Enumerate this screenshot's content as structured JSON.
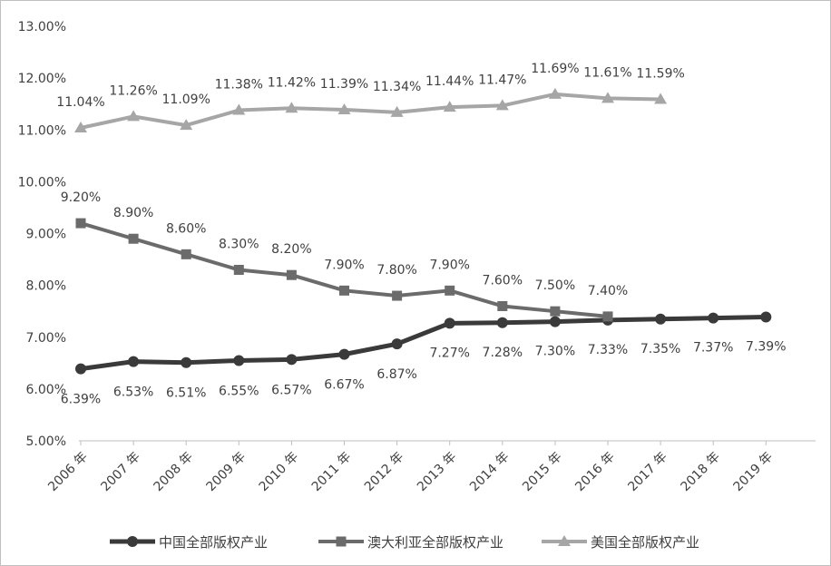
{
  "chart_data": {
    "type": "line",
    "title": "",
    "xlabel": "",
    "ylabel": "",
    "categories": [
      "2006 年",
      "2007 年",
      "2008 年",
      "2009 年",
      "2010 年",
      "2011 年",
      "2012 年",
      "2013 年",
      "2014 年",
      "2015 年",
      "2016 年",
      "2017 年",
      "2018 年",
      "2019 年"
    ],
    "ylim": [
      5.0,
      13.0
    ],
    "yticks": [
      "5.00%",
      "6.00%",
      "7.00%",
      "8.00%",
      "9.00%",
      "10.00%",
      "11.00%",
      "12.00%",
      "13.00%"
    ],
    "grid": false,
    "legend_position": "bottom",
    "series": [
      {
        "name": "中国全部版权产业",
        "marker": "circle",
        "color": "#3a3a3a",
        "values": [
          6.39,
          6.53,
          6.51,
          6.55,
          6.57,
          6.67,
          6.87,
          7.27,
          7.28,
          7.3,
          7.33,
          7.35,
          7.37,
          7.39
        ],
        "labels": [
          "6.39%",
          "6.53%",
          "6.51%",
          "6.55%",
          "6.57%",
          "6.67%",
          "6.87%",
          "7.27%",
          "7.28%",
          "7.30%",
          "7.33%",
          "7.35%",
          "7.37%",
          "7.39%"
        ]
      },
      {
        "name": "澳大利亚全部版权产业",
        "marker": "square",
        "color": "#6b6b6b",
        "values": [
          9.2,
          8.9,
          8.6,
          8.3,
          8.2,
          7.9,
          7.8,
          7.9,
          7.6,
          7.5,
          7.4,
          null,
          null,
          null
        ],
        "labels": [
          "9.20%",
          "8.90%",
          "8.60%",
          "8.30%",
          "8.20%",
          "7.90%",
          "7.80%",
          "7.90%",
          "7.60%",
          "7.50%",
          "7.40%",
          null,
          null,
          null
        ]
      },
      {
        "name": "美国全部版权产业",
        "marker": "triangle",
        "color": "#a6a6a6",
        "values": [
          11.04,
          11.26,
          11.09,
          11.38,
          11.42,
          11.39,
          11.34,
          11.44,
          11.47,
          11.69,
          11.61,
          11.59,
          null,
          null
        ],
        "labels": [
          "11.04%",
          "11.26%",
          "11.09%",
          "11.38%",
          "11.42%",
          "11.39%",
          "11.34%",
          "11.44%",
          "11.47%",
          "11.69%",
          "11.61%",
          "11.59%",
          null,
          null
        ]
      }
    ]
  }
}
